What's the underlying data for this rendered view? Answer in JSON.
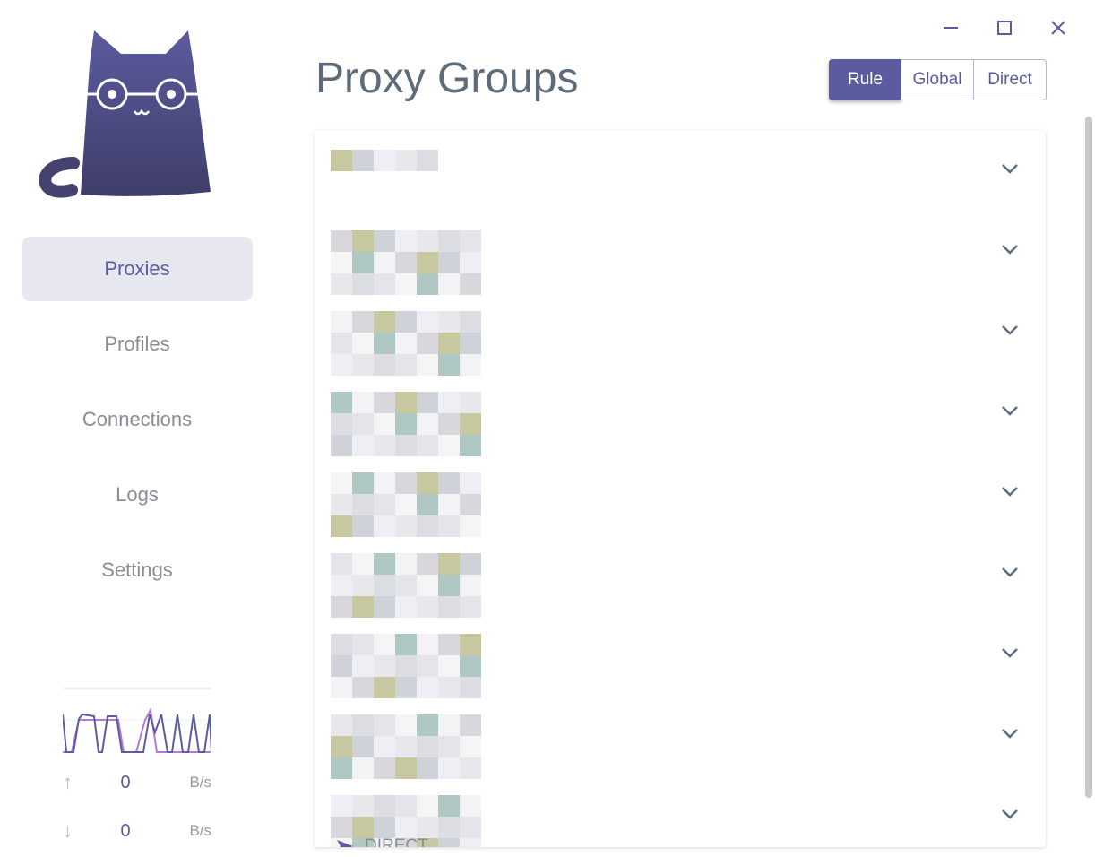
{
  "window": {
    "minimize": "minimize",
    "maximize": "maximize",
    "close": "close"
  },
  "sidebar": {
    "items": [
      {
        "label": "Proxies",
        "active": true
      },
      {
        "label": "Profiles"
      },
      {
        "label": "Connections"
      },
      {
        "label": "Logs"
      },
      {
        "label": "Settings"
      }
    ]
  },
  "traffic": {
    "up_value": "0",
    "up_unit": "B/s",
    "down_value": "0",
    "down_unit": "B/s"
  },
  "header": {
    "title": "Proxy Groups"
  },
  "modes": [
    {
      "label": "Rule",
      "selected": true
    },
    {
      "label": "Global"
    },
    {
      "label": "Direct"
    }
  ],
  "groups": {
    "count": 9,
    "last_now": "DIRECT"
  },
  "colors": {
    "accent": "#5b5b9f",
    "line_up": "#b877d6"
  }
}
